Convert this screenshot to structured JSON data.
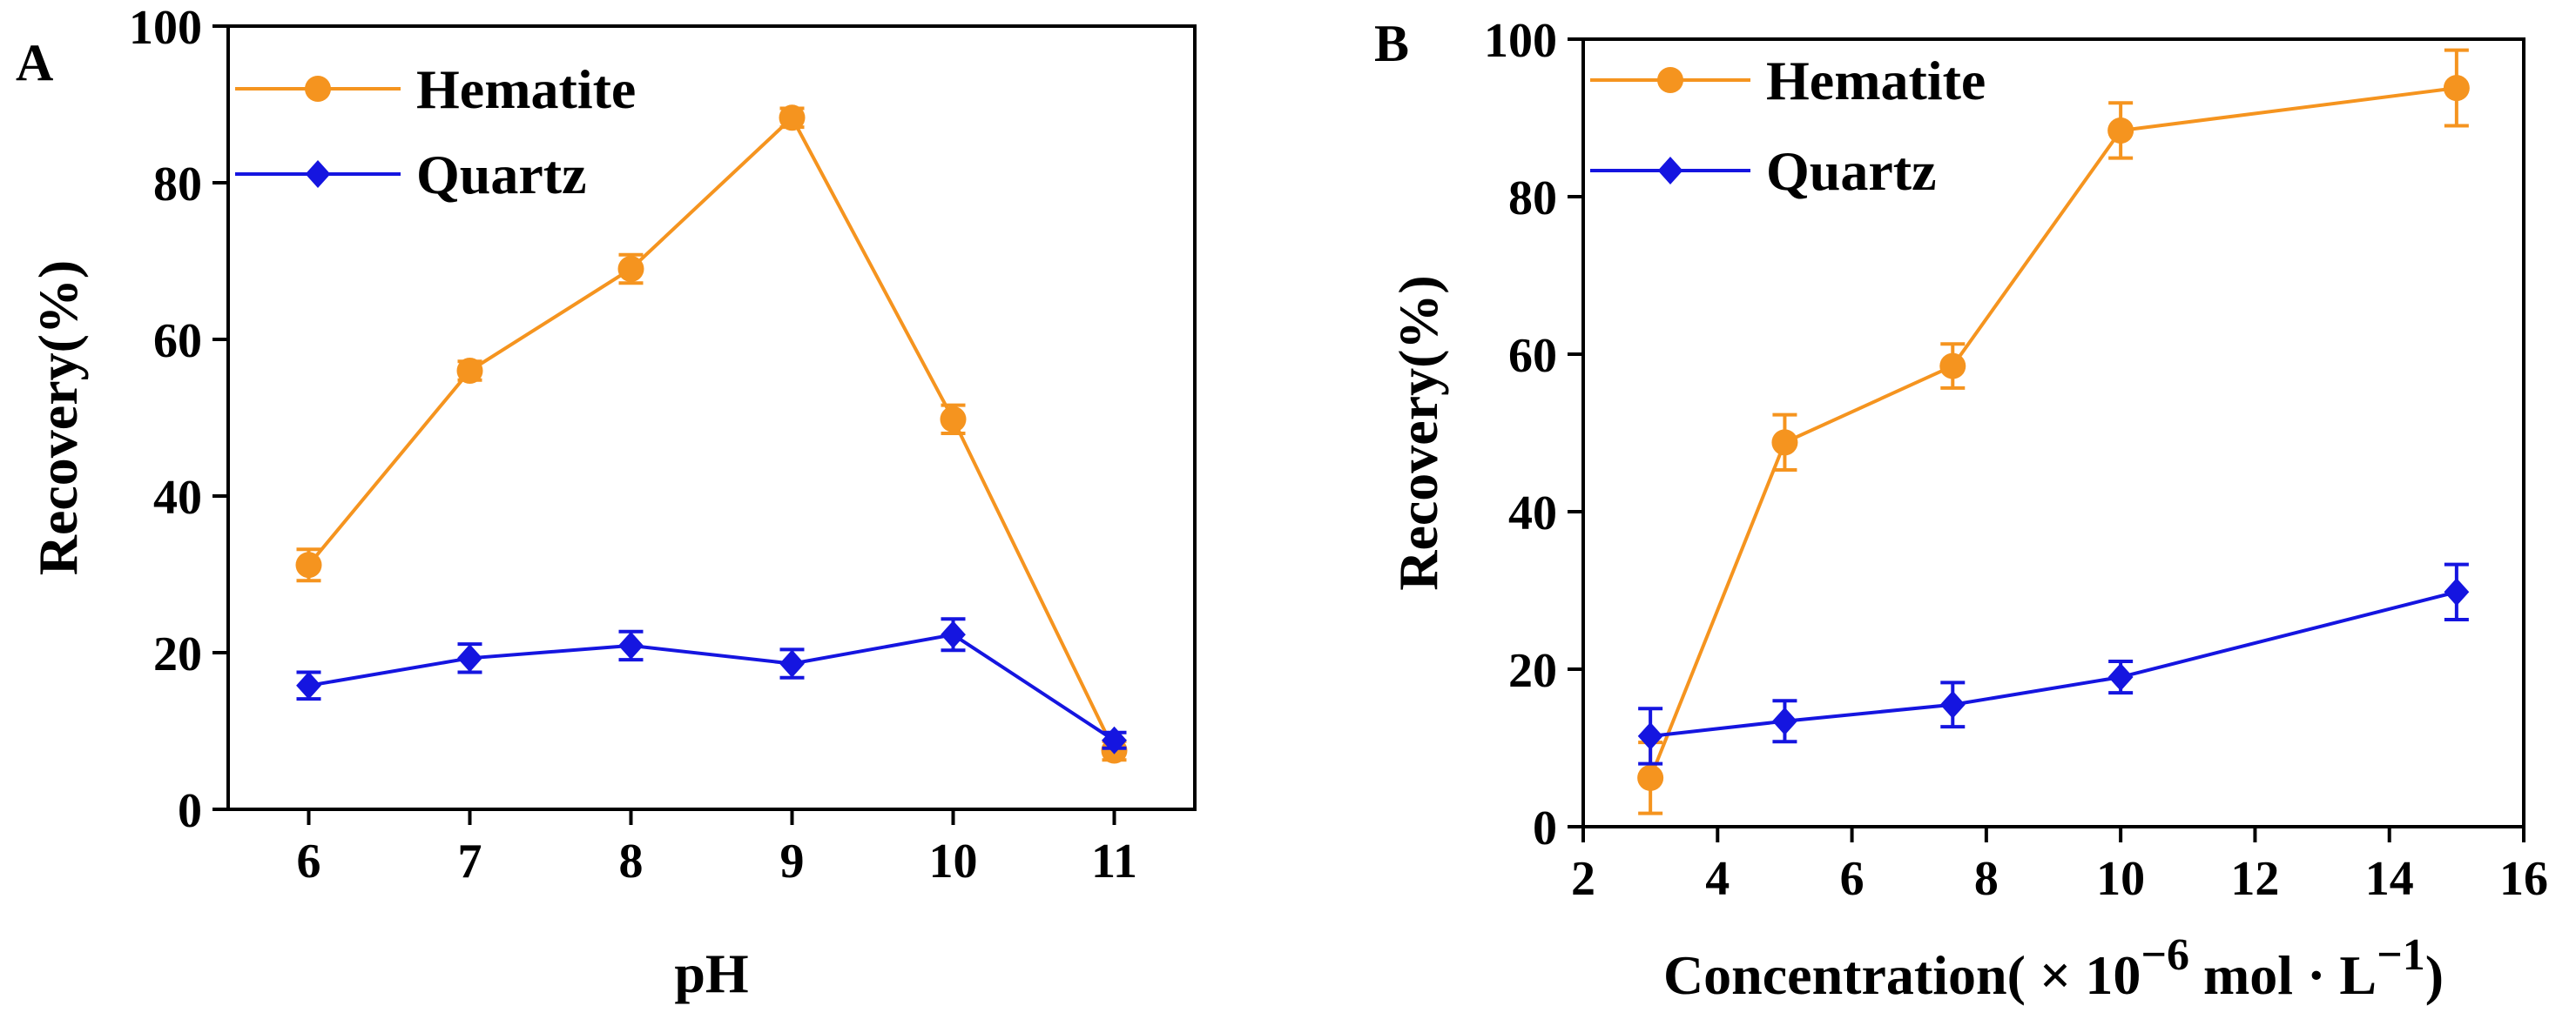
{
  "chart_data": [
    {
      "type": "line",
      "panel": "A",
      "title": "",
      "xlabel": "pH",
      "ylabel": "Recovery(%)",
      "xlim": [
        5.5,
        11.5
      ],
      "ylim": [
        0,
        100
      ],
      "x_ticks": [
        6,
        7,
        8,
        9,
        10,
        11
      ],
      "x_tick_labels": [
        "6",
        "7",
        "8",
        "9",
        "10",
        "11"
      ],
      "y_ticks": [
        0,
        20,
        40,
        60,
        80,
        100
      ],
      "y_tick_labels": [
        "0",
        "20",
        "40",
        "60",
        "80",
        "100"
      ],
      "legend_position": "top-left",
      "series": [
        {
          "name": "Hematite",
          "color": "#f5941f",
          "marker": "circle",
          "x": [
            6,
            7,
            8,
            9,
            10,
            11
          ],
          "y": [
            31.2,
            56.0,
            69.0,
            88.3,
            49.8,
            7.5
          ],
          "err": [
            2.0,
            1.2,
            1.8,
            1.2,
            1.8,
            1.2
          ]
        },
        {
          "name": "Quartz",
          "color": "#1515e0",
          "marker": "diamond",
          "x": [
            6,
            7,
            8,
            9,
            10,
            11
          ],
          "y": [
            15.8,
            19.3,
            20.9,
            18.6,
            22.3,
            8.8
          ],
          "err": [
            1.7,
            1.8,
            1.8,
            1.8,
            2.0,
            1.0
          ]
        }
      ]
    },
    {
      "type": "line",
      "panel": "B",
      "title": "",
      "xlabel": "Concentration( × 10",
      "xlabel_sup1": "−6",
      "xlabel_mid": " mol · L",
      "xlabel_sup2": "−1",
      "xlabel_end": ")",
      "ylabel": "Recovery(%)",
      "xlim": [
        2,
        16
      ],
      "ylim": [
        0,
        100
      ],
      "x_ticks": [
        2,
        4,
        6,
        8,
        10,
        12,
        14,
        16
      ],
      "x_tick_labels": [
        "2",
        "4",
        "6",
        "8",
        "10",
        "12",
        "14",
        "16"
      ],
      "y_ticks": [
        0,
        20,
        40,
        60,
        80,
        100
      ],
      "y_tick_labels": [
        "0",
        "20",
        "40",
        "60",
        "80",
        "100"
      ],
      "legend_position": "top-left",
      "series": [
        {
          "name": "Hematite",
          "color": "#f5941f",
          "marker": "circle",
          "x": [
            3,
            5,
            7.5,
            10,
            15
          ],
          "y": [
            6.2,
            48.8,
            58.5,
            88.4,
            93.8
          ],
          "err": [
            4.5,
            3.5,
            2.8,
            3.5,
            4.8
          ]
        },
        {
          "name": "Quartz",
          "color": "#1515e0",
          "marker": "diamond",
          "x": [
            3,
            5,
            7.5,
            10,
            15
          ],
          "y": [
            11.5,
            13.4,
            15.5,
            19.0,
            29.8
          ],
          "err": [
            3.5,
            2.6,
            2.8,
            2.0,
            3.5
          ]
        }
      ]
    }
  ]
}
